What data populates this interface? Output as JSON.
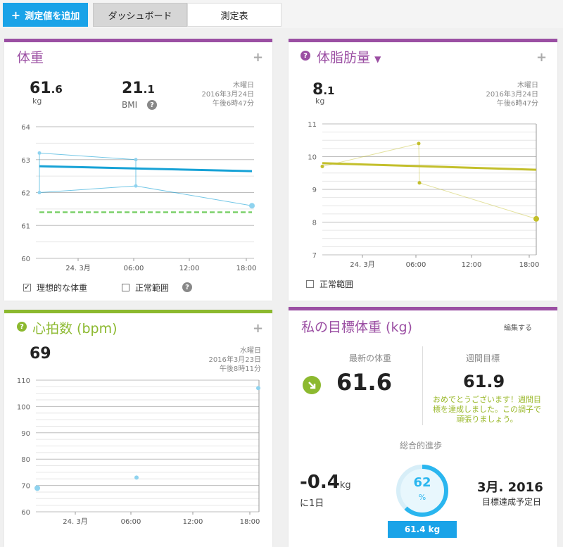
{
  "toolbar": {
    "add_label": "測定値を追加",
    "tab_dashboard": "ダッシュボード",
    "tab_table": "測定表"
  },
  "weight": {
    "title": "体重",
    "value_int": "61",
    "value_dec": ".6",
    "unit": "kg",
    "bmi_int": "21",
    "bmi_dec": ".1",
    "bmi_label": "BMI",
    "day": "木曜日",
    "date": "2016年3月24日",
    "time": "午後6時47分",
    "cb_ideal": "理想的な体重",
    "cb_normal": "正常範囲",
    "colors": {
      "accent": "#9b4fa3",
      "line": "#17a2d6",
      "ideal": "#7cd06a"
    },
    "chart_data": {
      "type": "line",
      "ylim": [
        60,
        64
      ],
      "yticks": [
        "64",
        "63",
        "62",
        "61",
        "60"
      ],
      "xticks": [
        "24. 3月",
        "06:00",
        "12:00",
        "18:00"
      ],
      "points": [
        63.2,
        62.0,
        63.0,
        62.2,
        61.6
      ],
      "trend": [
        62.8,
        62.65
      ],
      "ideal": 61.4
    }
  },
  "fat": {
    "title": "体脂肪量",
    "value_int": "8",
    "value_dec": ".1",
    "unit": "kg",
    "day": "木曜日",
    "date": "2016年3月24日",
    "time": "午後6時47分",
    "cb_normal": "正常範囲",
    "colors": {
      "accent": "#9b4fa3",
      "line": "#c3bf2b"
    },
    "chart_data": {
      "type": "line",
      "ylim": [
        7,
        11
      ],
      "yticks": [
        "11",
        "10",
        "9",
        "8",
        "7"
      ],
      "xticks": [
        "24. 3月",
        "06:00",
        "12:00",
        "18:00"
      ],
      "points": [
        9.7,
        10.4,
        9.2,
        8.1
      ],
      "trend": [
        9.8,
        9.6
      ]
    }
  },
  "heart": {
    "title": "心拍数 (bpm)",
    "value": "69",
    "day": "水曜日",
    "date": "2016年3月23日",
    "time": "午後8時11分",
    "colors": {
      "accent": "#8cb92f",
      "point": "#8fd3ef"
    },
    "chart_data": {
      "type": "scatter",
      "ylim": [
        60,
        110
      ],
      "yticks": [
        "110",
        "100",
        "90",
        "80",
        "70",
        "60"
      ],
      "xticks": [
        "24. 3月",
        "06:00",
        "12:00",
        "18:00"
      ],
      "points": [
        69,
        73,
        107
      ]
    }
  },
  "goal": {
    "title": "私の目標体重 (kg)",
    "edit": "編集する",
    "latest_label": "最新の体重",
    "latest_value": "61.6",
    "weekly_label": "週間目標",
    "weekly_value": "61.9",
    "congrats": [
      "おめでとうございます！週間目",
      "標を達成しました。この調子で",
      "頑張りましょう。"
    ],
    "progress_label": "総合的進歩",
    "change_value": "-0.4",
    "change_unit": "kg",
    "change_per": "に1日",
    "percent": "62",
    "percent_sign": "%",
    "target_badge": "61.4 kg",
    "target_date": "3月. 2016",
    "target_date_label": "目標達成予定日",
    "progress_fraction": 0.62,
    "colors": {
      "accent": "#9b4fa3",
      "ring": "#2ab6ef",
      "arrow": "#8cb92f",
      "congrats": "#9ab82a"
    }
  }
}
